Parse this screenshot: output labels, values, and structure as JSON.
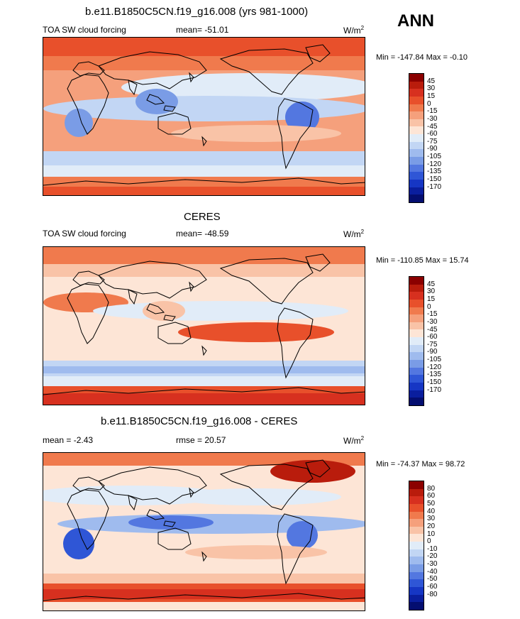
{
  "season": "ANN",
  "panels": [
    {
      "id": "model",
      "title": "b.e11.B1850C5CN.f19_g16.008 (yrs 981-1000)",
      "left_label": "TOA SW cloud forcing",
      "stat": "mean= -51.01",
      "units_base": "W/m",
      "units_exp": "2",
      "minmax": "Min = -147.84 Max =  -0.10",
      "colorbar": {
        "labels": [
          "45",
          "30",
          "15",
          "0",
          "-15",
          "-30",
          "-45",
          "-60",
          "-75",
          "-90",
          "-105",
          "-120",
          "-135",
          "-150",
          "-170"
        ],
        "colors": [
          "#8b0000",
          "#b91c0c",
          "#d7301f",
          "#e8502b",
          "#f07a4d",
          "#f5a07c",
          "#f9c3a7",
          "#fde5d6",
          "#e1ecf8",
          "#c2d6f4",
          "#9fbbee",
          "#7a9ce6",
          "#5377e0",
          "#2f56d6",
          "#1636c4",
          "#0a1e9e",
          "#040e70"
        ]
      }
    },
    {
      "id": "obs",
      "title": "CERES",
      "left_label": "TOA SW cloud forcing",
      "stat": "mean= -48.59",
      "units_base": "W/m",
      "units_exp": "2",
      "minmax": "Min = -110.85 Max =  15.74",
      "colorbar": {
        "labels": [
          "45",
          "30",
          "15",
          "0",
          "-15",
          "-30",
          "-45",
          "-60",
          "-75",
          "-90",
          "-105",
          "-120",
          "-135",
          "-150",
          "-170"
        ],
        "colors": [
          "#8b0000",
          "#b91c0c",
          "#d7301f",
          "#e8502b",
          "#f07a4d",
          "#f5a07c",
          "#f9c3a7",
          "#fde5d6",
          "#e1ecf8",
          "#c2d6f4",
          "#9fbbee",
          "#7a9ce6",
          "#5377e0",
          "#2f56d6",
          "#1636c4",
          "#0a1e9e",
          "#040e70"
        ]
      }
    },
    {
      "id": "diff",
      "title": "b.e11.B1850C5CN.f19_g16.008 - CERES",
      "left_label": "mean =  -2.43",
      "stat": "rmse =  20.57",
      "units_base": "W/m",
      "units_exp": "2",
      "minmax": "Min = -74.37 Max =  98.72",
      "colorbar": {
        "labels": [
          "80",
          "60",
          "50",
          "40",
          "30",
          "20",
          "10",
          "0",
          "-10",
          "-20",
          "-30",
          "-40",
          "-50",
          "-60",
          "-80"
        ],
        "colors": [
          "#8b0000",
          "#b91c0c",
          "#d7301f",
          "#e8502b",
          "#f07a4d",
          "#f5a07c",
          "#f9c3a7",
          "#fde5d6",
          "#e1ecf8",
          "#c2d6f4",
          "#9fbbee",
          "#7a9ce6",
          "#5377e0",
          "#2f56d6",
          "#1636c4",
          "#0a1e9e",
          "#040e70"
        ]
      }
    }
  ]
}
